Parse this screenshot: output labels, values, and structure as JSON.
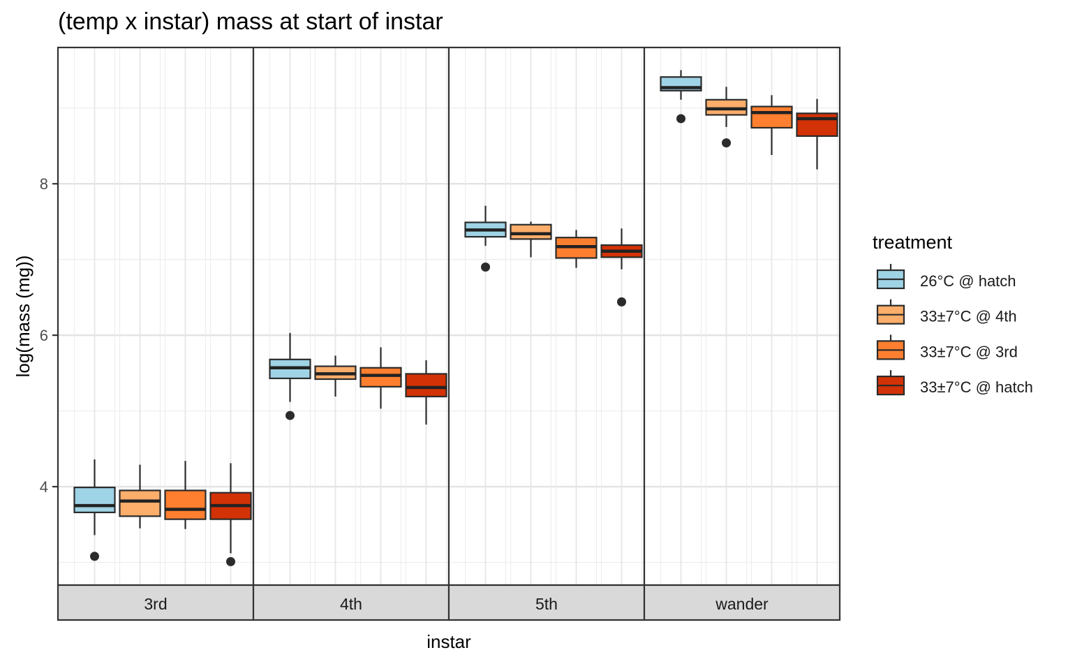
{
  "chart_data": {
    "type": "boxplot",
    "title": "(temp x instar) mass at start of instar",
    "xlabel": "instar",
    "ylabel": "log(mass (mg))",
    "ylim": [
      2.7,
      9.8
    ],
    "yticks": [
      4,
      6,
      8
    ],
    "grid": true,
    "legend_position": "right",
    "legend_title": "treatment",
    "facets": [
      "3rd",
      "4th",
      "5th",
      "wander"
    ],
    "series": [
      {
        "name": "26°C @ hatch",
        "color": "#9fd3e6"
      },
      {
        "name": "33±7°C @ 4th",
        "color": "#fdae6b"
      },
      {
        "name": "33±7°C @ 3rd",
        "color": "#fd7f2f"
      },
      {
        "name": "33±7°C @ hatch",
        "color": "#d33206"
      }
    ],
    "boxes": [
      {
        "facet": "3rd",
        "series": "26°C @ hatch",
        "min": 3.36,
        "q1": 3.66,
        "median": 3.75,
        "q3": 3.99,
        "max": 4.36,
        "outliers": [
          3.08
        ]
      },
      {
        "facet": "3rd",
        "series": "33±7°C @ 4th",
        "min": 3.45,
        "q1": 3.61,
        "median": 3.81,
        "q3": 3.95,
        "max": 4.29,
        "outliers": []
      },
      {
        "facet": "3rd",
        "series": "33±7°C @ 3rd",
        "min": 3.44,
        "q1": 3.57,
        "median": 3.7,
        "q3": 3.95,
        "max": 4.34,
        "outliers": []
      },
      {
        "facet": "3rd",
        "series": "33±7°C @ hatch",
        "min": 3.12,
        "q1": 3.57,
        "median": 3.75,
        "q3": 3.92,
        "max": 4.31,
        "outliers": [
          3.01
        ]
      },
      {
        "facet": "4th",
        "series": "26°C @ hatch",
        "min": 5.12,
        "q1": 5.43,
        "median": 5.57,
        "q3": 5.68,
        "max": 6.03,
        "outliers": [
          4.94
        ]
      },
      {
        "facet": "4th",
        "series": "33±7°C @ 4th",
        "min": 5.19,
        "q1": 5.42,
        "median": 5.49,
        "q3": 5.59,
        "max": 5.73,
        "outliers": []
      },
      {
        "facet": "4th",
        "series": "33±7°C @ 3rd",
        "min": 5.03,
        "q1": 5.32,
        "median": 5.47,
        "q3": 5.57,
        "max": 5.84,
        "outliers": []
      },
      {
        "facet": "4th",
        "series": "33±7°C @ hatch",
        "min": 4.82,
        "q1": 5.19,
        "median": 5.31,
        "q3": 5.49,
        "max": 5.67,
        "outliers": []
      },
      {
        "facet": "5th",
        "series": "26°C @ hatch",
        "min": 7.18,
        "q1": 7.3,
        "median": 7.39,
        "q3": 7.49,
        "max": 7.71,
        "outliers": [
          6.9
        ]
      },
      {
        "facet": "5th",
        "series": "33±7°C @ 4th",
        "min": 7.03,
        "q1": 7.27,
        "median": 7.34,
        "q3": 7.46,
        "max": 7.5,
        "outliers": []
      },
      {
        "facet": "5th",
        "series": "33±7°C @ 3rd",
        "min": 6.89,
        "q1": 7.02,
        "median": 7.17,
        "q3": 7.29,
        "max": 7.39,
        "outliers": []
      },
      {
        "facet": "5th",
        "series": "33±7°C @ hatch",
        "min": 6.87,
        "q1": 7.03,
        "median": 7.11,
        "q3": 7.19,
        "max": 7.41,
        "outliers": [
          6.44
        ]
      },
      {
        "facet": "wander",
        "series": "26°C @ hatch",
        "min": 9.11,
        "q1": 9.23,
        "median": 9.27,
        "q3": 9.41,
        "max": 9.5,
        "outliers": [
          8.86
        ]
      },
      {
        "facet": "wander",
        "series": "33±7°C @ 4th",
        "min": 8.75,
        "q1": 8.91,
        "median": 8.99,
        "q3": 9.11,
        "max": 9.28,
        "outliers": [
          8.54
        ]
      },
      {
        "facet": "wander",
        "series": "33±7°C @ 3rd",
        "min": 8.38,
        "q1": 8.74,
        "median": 8.94,
        "q3": 9.02,
        "max": 9.17,
        "outliers": []
      },
      {
        "facet": "wander",
        "series": "33±7°C @ hatch",
        "min": 8.19,
        "q1": 8.63,
        "median": 8.86,
        "q3": 8.93,
        "max": 9.12,
        "outliers": []
      }
    ]
  }
}
